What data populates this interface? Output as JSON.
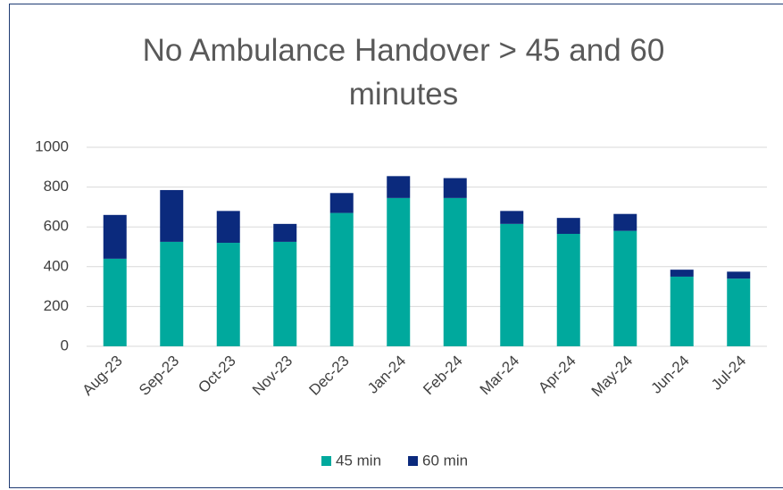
{
  "chart_data": {
    "type": "stacked_bar",
    "title": "No Ambulance Handover > 45 and 60 minutes",
    "categories": [
      "Aug-23",
      "Sep-23",
      "Oct-23",
      "Nov-23",
      "Dec-23",
      "Jan-24",
      "Feb-24",
      "Mar-24",
      "Apr-24",
      "May-24",
      "Jun-24",
      "Jul-24"
    ],
    "series": [
      {
        "name": "45 min",
        "color": "#00a99d",
        "values": [
          440,
          525,
          520,
          525,
          670,
          745,
          745,
          615,
          565,
          580,
          350,
          340
        ]
      },
      {
        "name": "60 min",
        "color": "#0b2a7d",
        "values": [
          220,
          260,
          160,
          90,
          100,
          110,
          100,
          65,
          80,
          85,
          35,
          35
        ]
      }
    ],
    "ylim": [
      0,
      1000
    ],
    "yticks": [
      0,
      200,
      400,
      600,
      800,
      1000
    ],
    "grid": true,
    "legend": "bottom"
  }
}
